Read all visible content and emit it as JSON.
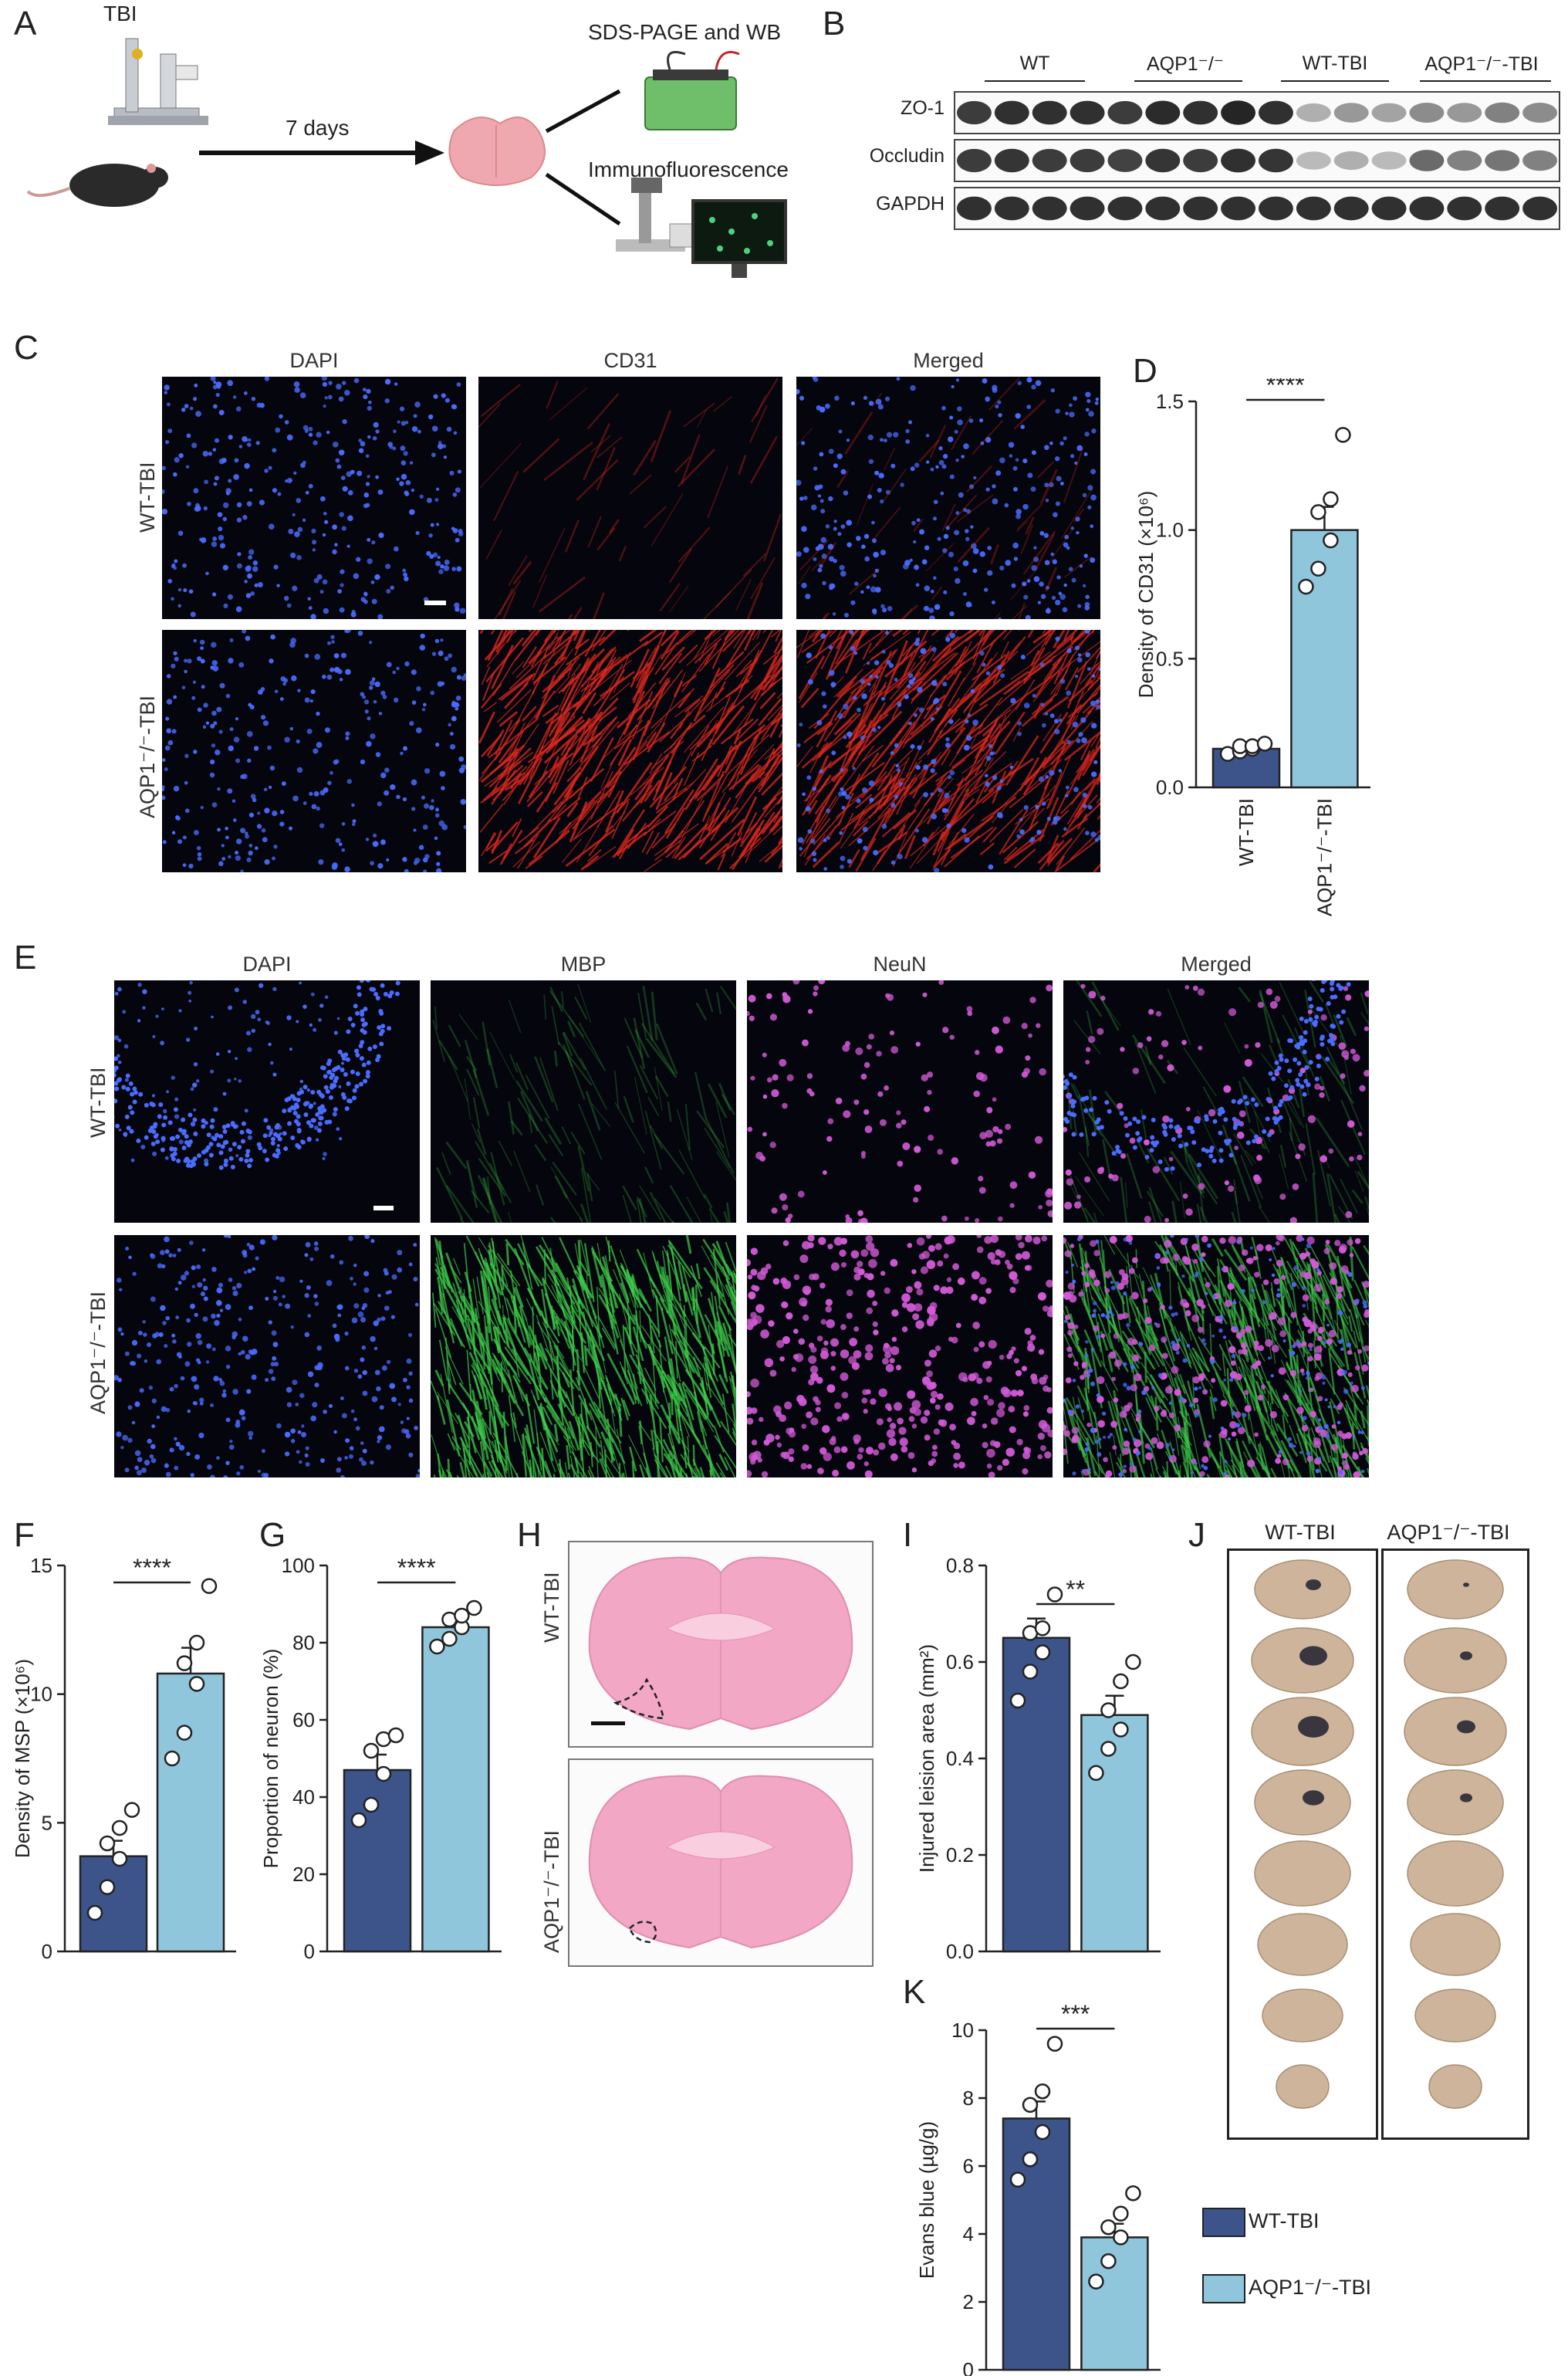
{
  "panels": {
    "A": {
      "letter": "A",
      "device_label": "TBI",
      "arrow_label": "7 days",
      "outcome_top": "SDS-PAGE and WB",
      "outcome_bottom": "Immunofluorescence"
    },
    "B": {
      "letter": "B",
      "groups": [
        "WT",
        "AQP1⁻/⁻",
        "WT-TBI",
        "AQP1⁻/⁻-TBI"
      ],
      "rows": [
        "ZO-1",
        "Occludin",
        "GAPDH"
      ]
    },
    "C": {
      "letter": "C",
      "columns": [
        "DAPI",
        "CD31",
        "Merged"
      ],
      "rows": [
        "WT-TBI",
        "AQP1⁻/⁻-TBI"
      ]
    },
    "E": {
      "letter": "E",
      "columns": [
        "DAPI",
        "MBP",
        "NeuN",
        "Merged"
      ],
      "rows": [
        "WT-TBI",
        "AQP1⁻/⁻-TBI"
      ]
    },
    "H": {
      "letter": "H",
      "rows": [
        "WT-TBI",
        "AQP1⁻/⁻-TBI"
      ]
    },
    "J": {
      "letter": "J",
      "columns": [
        "WT-TBI",
        "AQP1⁻/⁻-TBI"
      ]
    }
  },
  "colors": {
    "wt_tbi": "#3c548a",
    "aqp1_tbi": "#8fc6dc",
    "dapi": "#4a6cff",
    "cd31": "#e0281e",
    "mbp": "#3fcf4a",
    "neun": "#d35ad8"
  },
  "chart_data": [
    {
      "panel": "D",
      "type": "bar",
      "categories": [
        "WT-TBI",
        "AQP1⁻/⁻-TBI"
      ],
      "values": [
        0.15,
        1.0
      ],
      "errors": [
        0.01,
        0.09
      ],
      "points": [
        [
          0.13,
          0.14,
          0.15,
          0.16,
          0.16,
          0.17
        ],
        [
          0.78,
          0.85,
          0.96,
          1.07,
          1.12,
          1.37
        ]
      ],
      "ylabel": "Density of CD31 (×10⁶)",
      "ylim": [
        0,
        1.5
      ],
      "yticks": [
        "0.0",
        "0.5",
        "1.0",
        "1.5"
      ],
      "significance": "****"
    },
    {
      "panel": "F",
      "type": "bar",
      "categories": [
        "WT-TBI",
        "AQP1⁻/⁻-TBI"
      ],
      "values": [
        3.7,
        10.8
      ],
      "errors": [
        0.6,
        1.0
      ],
      "points": [
        [
          1.5,
          2.5,
          3.6,
          4.2,
          4.8,
          5.5
        ],
        [
          7.5,
          8.5,
          10.4,
          11.2,
          12.0,
          14.2
        ]
      ],
      "ylabel": "Density of MSP (×10⁶)",
      "ylim": [
        0,
        15
      ],
      "yticks": [
        "0",
        "5",
        "10",
        "15"
      ],
      "significance": "****"
    },
    {
      "panel": "G",
      "type": "bar",
      "categories": [
        "WT-TBI",
        "AQP1⁻/⁻-TBI"
      ],
      "values": [
        47,
        84
      ],
      "errors": [
        4,
        2
      ],
      "points": [
        [
          34,
          38,
          46,
          52,
          55,
          56
        ],
        [
          79,
          81,
          84,
          86,
          87,
          89
        ]
      ],
      "ylabel": "Proportion of neuron (%)",
      "ylim": [
        0,
        100
      ],
      "yticks": [
        "0",
        "20",
        "40",
        "60",
        "80",
        "100"
      ],
      "significance": "****"
    },
    {
      "panel": "I",
      "type": "bar",
      "categories": [
        "WT-TBI",
        "AQP1⁻/⁻-TBI"
      ],
      "values": [
        0.65,
        0.49
      ],
      "errors": [
        0.04,
        0.04
      ],
      "points": [
        [
          0.52,
          0.58,
          0.62,
          0.66,
          0.67,
          0.74
        ],
        [
          0.37,
          0.42,
          0.46,
          0.5,
          0.56,
          0.6
        ]
      ],
      "ylabel": "Injured leision area (mm²)",
      "ylim": [
        0,
        0.8
      ],
      "yticks": [
        "0.0",
        "0.2",
        "0.4",
        "0.6",
        "0.8"
      ],
      "significance": "**"
    },
    {
      "panel": "K",
      "type": "bar",
      "categories": [
        "WT-TBI",
        "AQP1⁻/⁻-TBI"
      ],
      "values": [
        7.4,
        3.9
      ],
      "errors": [
        0.5,
        0.4
      ],
      "points": [
        [
          5.6,
          6.2,
          7.0,
          7.8,
          8.2,
          9.6
        ],
        [
          2.6,
          3.2,
          3.9,
          4.2,
          4.6,
          5.2
        ]
      ],
      "ylabel": "Evans blue (µg/g)",
      "ylim": [
        0,
        10
      ],
      "yticks": [
        "0",
        "2",
        "4",
        "6",
        "8",
        "10"
      ],
      "significance": "***"
    }
  ],
  "chart_letters": {
    "D": "D",
    "F": "F",
    "G": "G",
    "I": "I",
    "K": "K"
  },
  "legend": {
    "items": [
      "WT-TBI",
      "AQP1⁻/⁻-TBI"
    ]
  }
}
